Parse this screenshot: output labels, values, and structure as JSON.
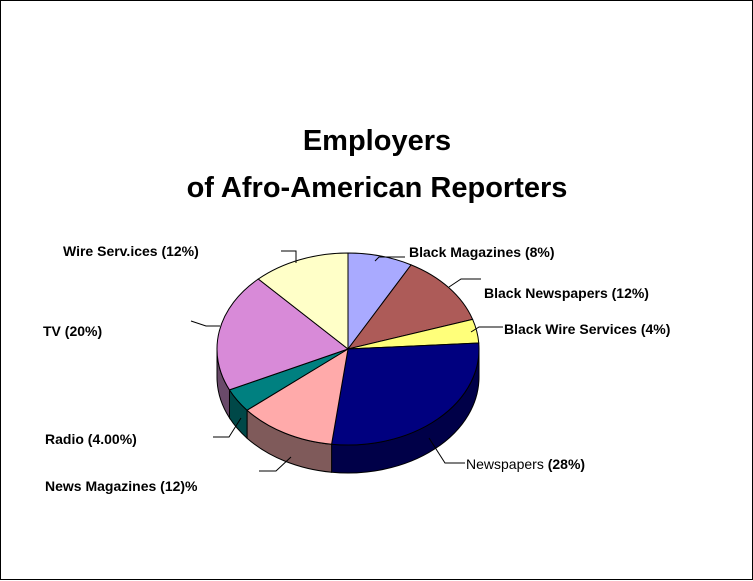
{
  "chart_data": {
    "type": "pie",
    "title": [
      "Employers",
      "of Afro-American Reporters"
    ],
    "three_d": true,
    "legend": "none",
    "slices": [
      {
        "label_prefix": "",
        "label_bold": "Black Magazines (8%)",
        "value": 8,
        "color": "#a9aaff",
        "side": "#6f70b0"
      },
      {
        "label_prefix": "",
        "label_bold": "Black Newspapers (12%)",
        "value": 12,
        "color": "#ad5b58",
        "side": "#6e3634"
      },
      {
        "label_prefix": "",
        "label_bold": "Black Wire Services (4%)",
        "value": 4,
        "color": "#ffff7a",
        "side": "#a6a64a"
      },
      {
        "label_prefix": "Newspapers ",
        "label_bold": "(28%)",
        "value": 28,
        "color": "#00007f",
        "side": "#000048"
      },
      {
        "label_prefix": "",
        "label_bold": "News Magazines (12)%",
        "value": 12,
        "color": "#ffaaaa",
        "side": "#7f5a5a"
      },
      {
        "label_prefix": "",
        "label_bold": "Radio (4.00%)",
        "value": 4,
        "color": "#008080",
        "side": "#004848"
      },
      {
        "label_prefix": "",
        "label_bold": "TV (20%)",
        "value": 20,
        "color": "#d88ad8",
        "side": "#6a4a6a"
      },
      {
        "label_prefix": "",
        "label_bold": "Wire Serv.ices (12%)",
        "value": 12,
        "color": "#ffffc8",
        "side": "#a6a680"
      }
    ]
  }
}
